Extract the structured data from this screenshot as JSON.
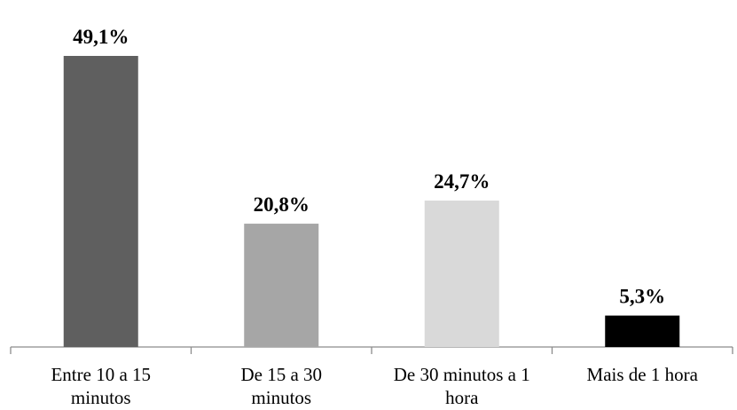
{
  "chart_data": {
    "type": "bar",
    "title": "",
    "xlabel": "",
    "ylabel": "",
    "categories": [
      [
        "Entre 10 a 15",
        "minutos"
      ],
      [
        "De 15 a 30",
        "minutos"
      ],
      [
        "De 30 minutos a 1",
        "hora"
      ],
      [
        "Mais de 1 hora"
      ]
    ],
    "values": [
      49.1,
      20.8,
      24.7,
      5.3
    ],
    "value_labels": [
      "49,1%",
      "20,8%",
      "24,7%",
      "5,3%"
    ],
    "colors": [
      "#5f5f5f",
      "#a6a6a6",
      "#d9d9d9",
      "#000000"
    ],
    "ylim": [
      0,
      50
    ],
    "grid": false,
    "legend": "none",
    "y_axis_visible": false
  }
}
